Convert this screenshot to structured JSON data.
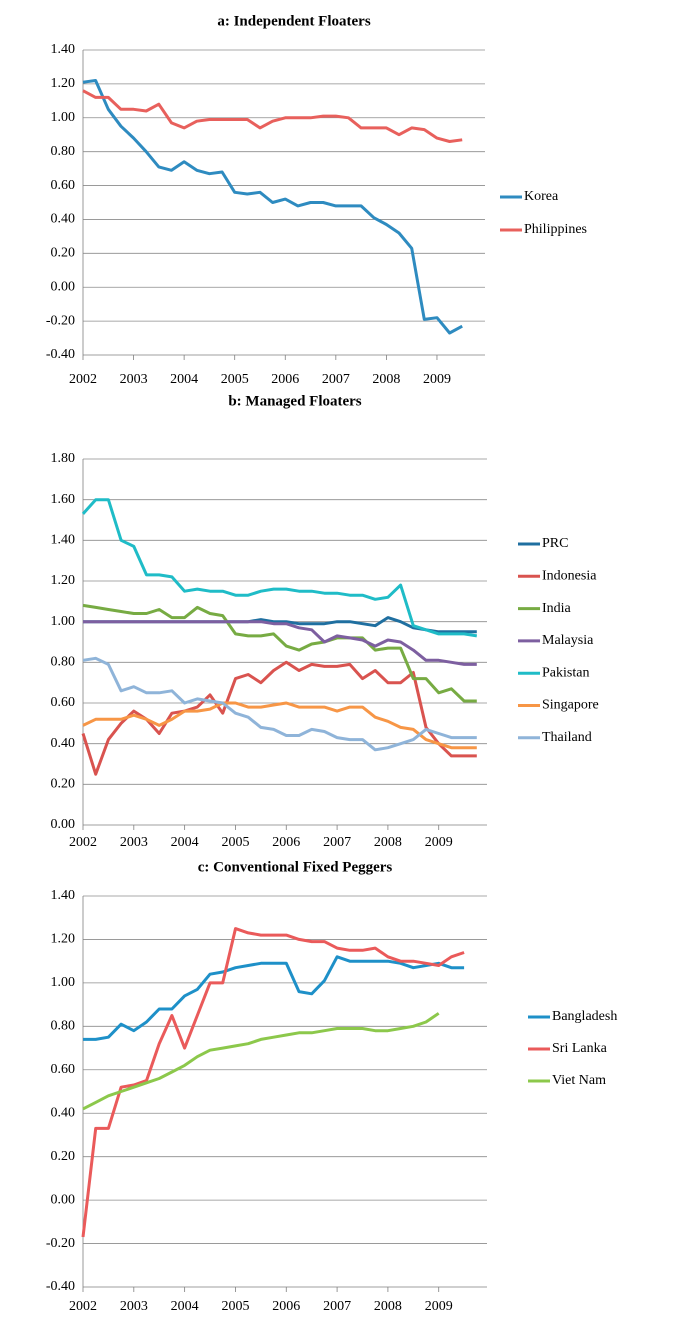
{
  "chart_data": [
    {
      "type": "line",
      "title": "a: Independent Floaters",
      "x": [
        2002,
        2002.25,
        2002.5,
        2002.75,
        2003,
        2003.25,
        2003.5,
        2003.75,
        2004,
        2004.25,
        2004.5,
        2004.75,
        2005,
        2005.25,
        2005.5,
        2005.75,
        2006,
        2006.25,
        2006.5,
        2006.75,
        2007,
        2007.25,
        2007.5,
        2007.75,
        2008,
        2008.25,
        2008.5,
        2008.75,
        2009,
        2009.25,
        2009.5,
        2009.75
      ],
      "xlim": [
        2002,
        2009.95
      ],
      "xticks": [
        2002,
        2003,
        2004,
        2005,
        2006,
        2007,
        2008,
        2009
      ],
      "ylim": [
        -0.4,
        1.4
      ],
      "yticks": [
        {
          "value": -0.4,
          "label": "-0.40"
        },
        {
          "value": -0.2,
          "label": "-0.20"
        },
        {
          "value": 0,
          "label": "0.00"
        },
        {
          "value": 0.2,
          "label": "0.20"
        },
        {
          "value": 0.4,
          "label": "0.40"
        },
        {
          "value": 0.6,
          "label": "0.60"
        },
        {
          "value": 0.8,
          "label": "0.80"
        },
        {
          "value": 1,
          "label": "1.00"
        },
        {
          "value": 1.2,
          "label": "1.20"
        },
        {
          "value": 1.4,
          "label": "1.40"
        }
      ],
      "grid": true,
      "legend": "right",
      "series": [
        {
          "name": "Korea",
          "color": "#2e8bc0",
          "values": [
            1.21,
            1.22,
            1.05,
            0.95,
            0.88,
            0.8,
            0.71,
            0.69,
            0.74,
            0.69,
            0.67,
            0.68,
            0.56,
            0.55,
            0.56,
            0.5,
            0.52,
            0.48,
            0.5,
            0.5,
            0.48,
            0.48,
            0.48,
            0.41,
            0.37,
            0.32,
            0.23,
            -0.19,
            -0.18,
            -0.27,
            -0.23,
            null
          ]
        },
        {
          "name": "Philippines",
          "color": "#e8605c",
          "values": [
            1.16,
            1.12,
            1.12,
            1.05,
            1.05,
            1.04,
            1.08,
            0.97,
            0.94,
            0.98,
            0.99,
            0.99,
            0.99,
            0.99,
            0.94,
            0.98,
            1.0,
            1.0,
            1.0,
            1.01,
            1.01,
            1.0,
            0.94,
            0.94,
            0.94,
            0.9,
            0.94,
            0.93,
            0.88,
            0.86,
            0.87,
            null
          ]
        }
      ]
    },
    {
      "type": "line",
      "title": "b: Managed Floaters",
      "x": [
        2002,
        2002.25,
        2002.5,
        2002.75,
        2003,
        2003.25,
        2003.5,
        2003.75,
        2004,
        2004.25,
        2004.5,
        2004.75,
        2005,
        2005.25,
        2005.5,
        2005.75,
        2006,
        2006.25,
        2006.5,
        2006.75,
        2007,
        2007.25,
        2007.5,
        2007.75,
        2008,
        2008.25,
        2008.5,
        2008.75,
        2009,
        2009.25,
        2009.5,
        2009.75
      ],
      "xlim": [
        2002,
        2009.95
      ],
      "xticks": [
        2002,
        2003,
        2004,
        2005,
        2006,
        2007,
        2008,
        2009
      ],
      "ylim": [
        0,
        1.8
      ],
      "yticks": [
        {
          "value": 0,
          "label": "0.00"
        },
        {
          "value": 0.2,
          "label": "0.20"
        },
        {
          "value": 0.4,
          "label": "0.40"
        },
        {
          "value": 0.6,
          "label": "0.60"
        },
        {
          "value": 0.8,
          "label": "0.80"
        },
        {
          "value": 1,
          "label": "1.00"
        },
        {
          "value": 1.2,
          "label": "1.20"
        },
        {
          "value": 1.4,
          "label": "1.40"
        },
        {
          "value": 1.6,
          "label": "1.60"
        },
        {
          "value": 1.8,
          "label": "1.80"
        }
      ],
      "grid": true,
      "legend": "right",
      "series": [
        {
          "name": "PRC",
          "color": "#1f6fa0",
          "values": [
            1,
            1,
            1,
            1,
            1,
            1,
            1,
            1,
            1,
            1,
            1,
            1,
            1,
            1,
            1.01,
            1,
            1,
            0.99,
            0.99,
            0.99,
            1,
            1,
            0.99,
            0.98,
            1.02,
            1,
            0.97,
            0.96,
            0.95,
            0.95,
            0.95,
            0.95
          ]
        },
        {
          "name": "Indonesia",
          "color": "#d9534f",
          "values": [
            0.45,
            0.25,
            0.42,
            0.5,
            0.56,
            0.52,
            0.45,
            0.55,
            0.56,
            0.58,
            0.64,
            0.55,
            0.72,
            0.74,
            0.7,
            0.76,
            0.8,
            0.76,
            0.79,
            0.78,
            0.78,
            0.79,
            0.72,
            0.76,
            0.7,
            0.7,
            0.75,
            0.48,
            0.4,
            0.34,
            0.34,
            0.34
          ]
        },
        {
          "name": "India",
          "color": "#77ab43",
          "values": [
            1.08,
            1.07,
            1.06,
            1.05,
            1.04,
            1.04,
            1.06,
            1.02,
            1.02,
            1.07,
            1.04,
            1.03,
            0.94,
            0.93,
            0.93,
            0.94,
            0.88,
            0.86,
            0.89,
            0.9,
            0.92,
            0.92,
            0.92,
            0.86,
            0.87,
            0.87,
            0.72,
            0.72,
            0.65,
            0.67,
            0.61,
            0.61
          ]
        },
        {
          "name": "Malaysia",
          "color": "#7d5fa0",
          "values": [
            1,
            1,
            1,
            1,
            1,
            1,
            1,
            1,
            1,
            1,
            1,
            1,
            1,
            1,
            1,
            0.99,
            0.99,
            0.97,
            0.96,
            0.9,
            0.93,
            0.92,
            0.91,
            0.88,
            0.91,
            0.9,
            0.86,
            0.81,
            0.81,
            0.8,
            0.79,
            0.79
          ]
        },
        {
          "name": "Pakistan",
          "color": "#1fbcc7",
          "values": [
            1.53,
            1.6,
            1.6,
            1.4,
            1.37,
            1.23,
            1.23,
            1.22,
            1.15,
            1.16,
            1.15,
            1.15,
            1.13,
            1.13,
            1.15,
            1.16,
            1.16,
            1.15,
            1.15,
            1.14,
            1.14,
            1.13,
            1.13,
            1.11,
            1.12,
            1.18,
            0.98,
            0.96,
            0.94,
            0.94,
            0.94,
            0.93
          ]
        },
        {
          "name": "Singapore",
          "color": "#f79646",
          "values": [
            0.49,
            0.52,
            0.52,
            0.52,
            0.54,
            0.52,
            0.49,
            0.52,
            0.56,
            0.56,
            0.57,
            0.6,
            0.6,
            0.58,
            0.58,
            0.59,
            0.6,
            0.58,
            0.58,
            0.58,
            0.56,
            0.58,
            0.58,
            0.53,
            0.51,
            0.48,
            0.47,
            0.42,
            0.4,
            0.38,
            0.38,
            0.38
          ]
        },
        {
          "name": "Thailand",
          "color": "#8fb4d9",
          "values": [
            0.81,
            0.82,
            0.79,
            0.66,
            0.68,
            0.65,
            0.65,
            0.66,
            0.6,
            0.62,
            0.61,
            0.6,
            0.55,
            0.53,
            0.48,
            0.47,
            0.44,
            0.44,
            0.47,
            0.46,
            0.43,
            0.42,
            0.42,
            0.37,
            0.38,
            0.4,
            0.42,
            0.47,
            0.45,
            0.43,
            0.43,
            0.43
          ]
        }
      ]
    },
    {
      "type": "line",
      "title": "c: Conventional Fixed Peggers",
      "x": [
        2002,
        2002.25,
        2002.5,
        2002.75,
        2003,
        2003.25,
        2003.5,
        2003.75,
        2004,
        2004.25,
        2004.5,
        2004.75,
        2005,
        2005.25,
        2005.5,
        2005.75,
        2006,
        2006.25,
        2006.5,
        2006.75,
        2007,
        2007.25,
        2007.5,
        2007.75,
        2008,
        2008.25,
        2008.5,
        2008.75,
        2009,
        2009.25,
        2009.5,
        2009.75
      ],
      "xlim": [
        2002,
        2009.95
      ],
      "xticks": [
        2002,
        2003,
        2004,
        2005,
        2006,
        2007,
        2008,
        2009
      ],
      "ylim": [
        -0.4,
        1.4
      ],
      "yticks": [
        {
          "value": -0.4,
          "label": "-0.40"
        },
        {
          "value": -0.2,
          "label": "-0.20"
        },
        {
          "value": 0,
          "label": "0.00"
        },
        {
          "value": 0.2,
          "label": "0.20"
        },
        {
          "value": 0.4,
          "label": "0.40"
        },
        {
          "value": 0.6,
          "label": "0.60"
        },
        {
          "value": 0.8,
          "label": "0.80"
        },
        {
          "value": 1,
          "label": "1.00"
        },
        {
          "value": 1.2,
          "label": "1.20"
        },
        {
          "value": 1.4,
          "label": "1.40"
        }
      ],
      "grid": true,
      "legend": "right",
      "series": [
        {
          "name": "Bangladesh",
          "color": "#1e90c8",
          "values": [
            0.74,
            0.74,
            0.75,
            0.81,
            0.78,
            0.82,
            0.88,
            0.88,
            0.94,
            0.97,
            1.04,
            1.05,
            1.07,
            1.08,
            1.09,
            1.09,
            1.09,
            0.96,
            0.95,
            1.01,
            1.12,
            1.1,
            1.1,
            1.1,
            1.1,
            1.09,
            1.07,
            1.08,
            1.09,
            1.07,
            1.07,
            null
          ]
        },
        {
          "name": "Sri Lanka",
          "color": "#ea5a5a",
          "values": [
            -0.17,
            0.33,
            0.33,
            0.52,
            0.53,
            0.55,
            0.72,
            0.85,
            0.7,
            0.85,
            1.0,
            1.0,
            1.25,
            1.23,
            1.22,
            1.22,
            1.22,
            1.2,
            1.19,
            1.19,
            1.16,
            1.15,
            1.15,
            1.16,
            1.12,
            1.1,
            1.1,
            1.09,
            1.08,
            1.12,
            1.14,
            null
          ]
        },
        {
          "name": "Viet Nam",
          "color": "#8cc84b",
          "values": [
            0.42,
            0.45,
            0.48,
            0.5,
            0.52,
            0.54,
            0.56,
            0.59,
            0.62,
            0.66,
            0.69,
            0.7,
            0.71,
            0.72,
            0.74,
            0.75,
            0.76,
            0.77,
            0.77,
            0.78,
            0.79,
            0.79,
            0.79,
            0.78,
            0.78,
            0.79,
            0.8,
            0.82,
            0.86,
            null,
            null,
            null
          ]
        }
      ]
    }
  ]
}
